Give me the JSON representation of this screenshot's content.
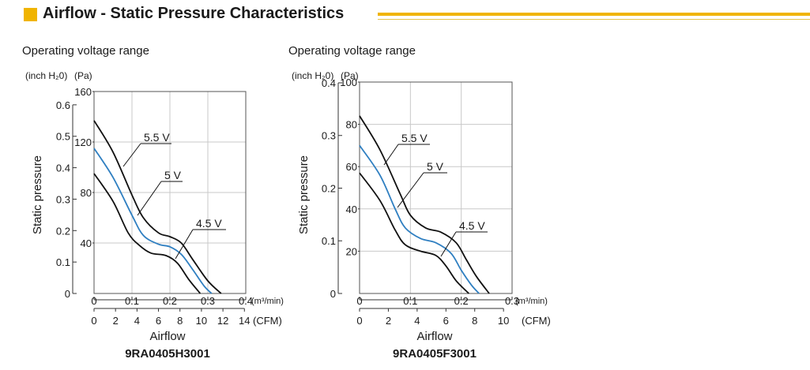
{
  "header": {
    "title": "Airflow - Static Pressure Characteristics",
    "accent_color": "#f0b400"
  },
  "chart_data": [
    {
      "type": "line",
      "title": "Operating voltage range",
      "model": "9RA0405H3001",
      "xlabel": "Airflow",
      "ylabel": "Static pressure",
      "x_unit_primary": "(m³/min)",
      "x_unit_secondary": "(CFM)",
      "y_unit_left": "(inch H₂0)",
      "y_unit_right": "(Pa)",
      "xlim_m3min": [
        0,
        0.4
      ],
      "x_ticks_m3min": [
        "0",
        "0.1",
        "0.2",
        "0.3",
        "0.4"
      ],
      "cfm_ticks": [
        "0",
        "2",
        "4",
        "6",
        "8",
        "10",
        "12",
        "14"
      ],
      "ylim_pa": [
        0,
        160
      ],
      "pa_ticks": [
        "40",
        "80",
        "120",
        "160"
      ],
      "inch_ticks": [
        "0",
        "0.1",
        "0.2",
        "0.3",
        "0.4",
        "0.5",
        "0.6"
      ],
      "series": [
        {
          "name": "5.5 V",
          "color": "#111111",
          "x": [
            0,
            0.05,
            0.1,
            0.13,
            0.17,
            0.2,
            0.23,
            0.26,
            0.3,
            0.335
          ],
          "y": [
            137,
            112,
            78,
            60,
            48,
            45,
            40,
            27,
            10,
            0
          ]
        },
        {
          "name": "5 V",
          "color": "#2f7fc1",
          "x": [
            0,
            0.05,
            0.1,
            0.13,
            0.17,
            0.2,
            0.23,
            0.26,
            0.29,
            0.31
          ],
          "y": [
            115,
            92,
            62,
            46,
            39,
            37,
            31,
            19,
            6,
            0
          ]
        },
        {
          "name": "4.5 V",
          "color": "#111111",
          "x": [
            0,
            0.05,
            0.09,
            0.12,
            0.15,
            0.19,
            0.22,
            0.25,
            0.28
          ],
          "y": [
            95,
            73,
            48,
            38,
            32,
            30,
            24,
            11,
            0
          ]
        }
      ]
    },
    {
      "type": "line",
      "title": "Operating voltage range",
      "model": "9RA0405F3001",
      "xlabel": "Airflow",
      "ylabel": "Static pressure",
      "x_unit_primary": "(m³/min)",
      "x_unit_secondary": "(CFM)",
      "y_unit_left": "(inch H₂0)",
      "y_unit_right": "(Pa)",
      "xlim_m3min": [
        0,
        0.3
      ],
      "x_ticks_m3min": [
        "0",
        "0.1",
        "0.2",
        "0.3"
      ],
      "cfm_ticks": [
        "0",
        "2",
        "4",
        "6",
        "8",
        "10"
      ],
      "ylim_pa": [
        0,
        100
      ],
      "pa_ticks": [
        "20",
        "40",
        "60",
        "80",
        "100"
      ],
      "inch_ticks": [
        "0",
        "0.1",
        "0.2",
        "0.3",
        "0.4"
      ],
      "series": [
        {
          "name": "5.5 V",
          "color": "#111111",
          "x": [
            0,
            0.04,
            0.08,
            0.1,
            0.13,
            0.16,
            0.19,
            0.21,
            0.23,
            0.255
          ],
          "y": [
            84,
            68,
            47,
            37,
            31,
            29,
            24,
            16,
            8,
            0
          ]
        },
        {
          "name": "5 V",
          "color": "#2f7fc1",
          "x": [
            0,
            0.04,
            0.07,
            0.09,
            0.12,
            0.15,
            0.18,
            0.2,
            0.22,
            0.235
          ],
          "y": [
            70,
            56,
            40,
            31,
            26,
            24,
            19,
            11,
            4,
            0
          ]
        },
        {
          "name": "4.5 V",
          "color": "#111111",
          "x": [
            0,
            0.04,
            0.07,
            0.09,
            0.12,
            0.15,
            0.17,
            0.19,
            0.215
          ],
          "y": [
            57,
            44,
            30,
            23,
            20,
            18,
            13,
            6,
            0
          ]
        }
      ]
    }
  ]
}
